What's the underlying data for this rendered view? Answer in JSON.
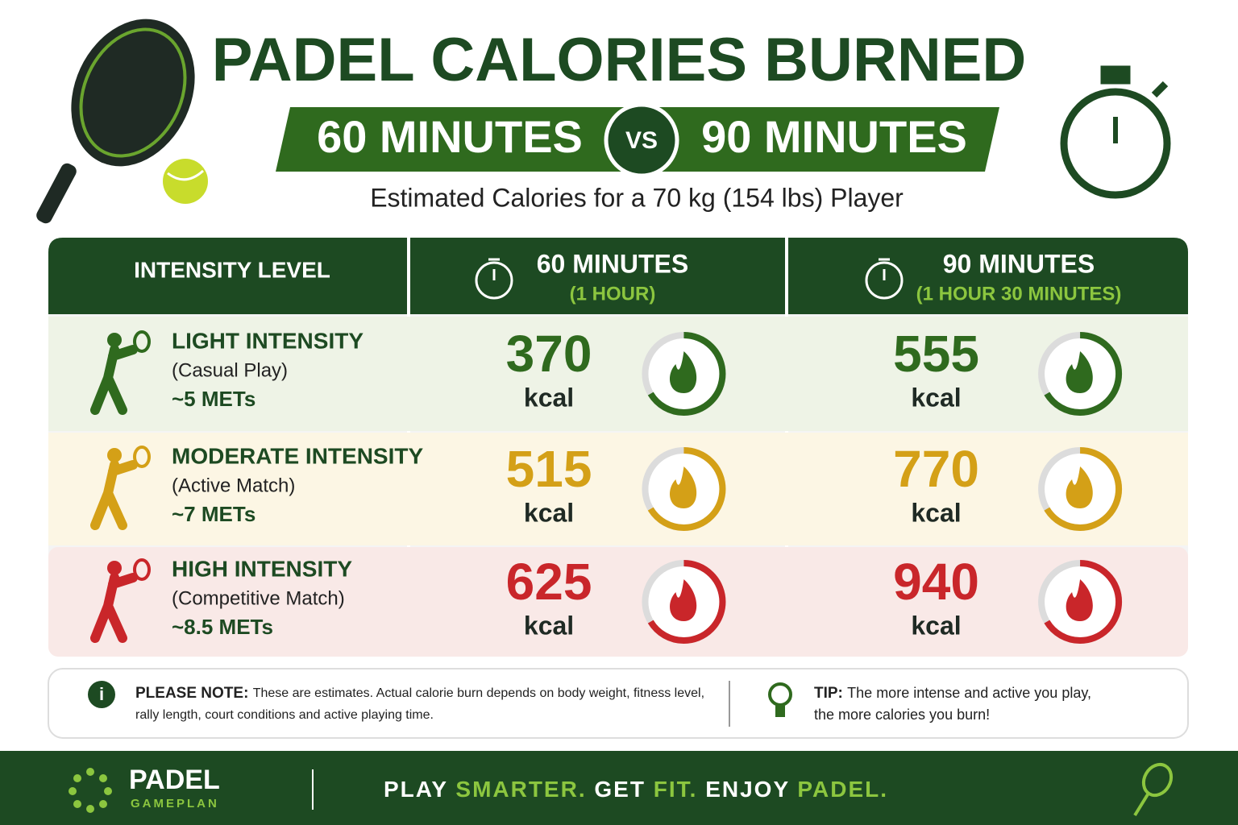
{
  "header": {
    "title": "PADEL CALORIES BURNED",
    "left": "60 MINUTES",
    "vs": "VS",
    "right": "90 MINUTES",
    "subtitle": "Estimated Calories for a 70 kg (154 lbs) Player"
  },
  "table": {
    "unit": "kcal",
    "columns": [
      {
        "label": "INTENSITY LEVEL"
      },
      {
        "label": "60 MINUTES",
        "sub": "(1 HOUR)"
      },
      {
        "label": "90 MINUTES",
        "sub": "(1 HOUR 30 MINUTES)"
      }
    ],
    "rows": [
      {
        "name": "LIGHT INTENSITY",
        "desc": "(Casual Play)",
        "mets": "~5 METs",
        "color": "#2f6a1e",
        "values": [
          370,
          555
        ]
      },
      {
        "name": "MODERATE INTENSITY",
        "desc": "(Active Match)",
        "mets": "~7 METs",
        "color": "#d4a017",
        "values": [
          515,
          770
        ]
      },
      {
        "name": "HIGH INTENSITY",
        "desc": "(Competitive Match)",
        "mets": "~8.5 METs",
        "color": "#c9262a",
        "values": [
          625,
          940
        ]
      }
    ]
  },
  "note": {
    "label": "PLEASE NOTE:",
    "lines": [
      "These are estimates. Actual calorie burn depends on body weight, fitness level,",
      "rally length, court conditions and active playing time."
    ]
  },
  "tip": {
    "label": "TIP:",
    "lines": [
      "The more intense and active you play,",
      "the more calories you burn!"
    ]
  },
  "footer": {
    "brand": "PADEL",
    "brand_sub": "GAMEPLAN",
    "slogan": [
      "PLAY",
      "SMARTER.",
      "GET",
      "FIT.",
      "ENJOY",
      "PADEL."
    ]
  }
}
